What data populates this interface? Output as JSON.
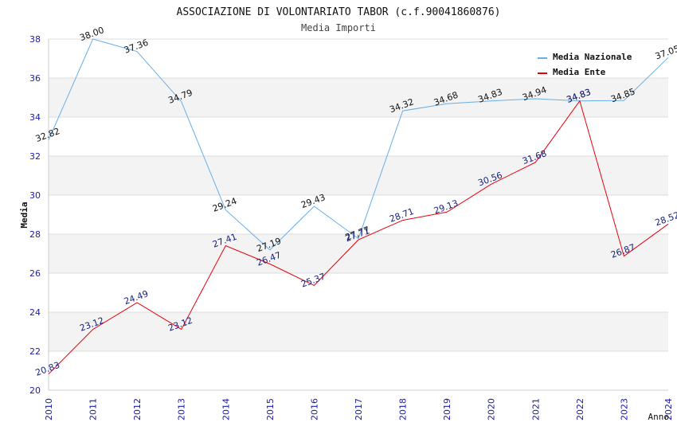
{
  "chart_data": {
    "type": "line",
    "title": "ASSOCIAZIONE DI VOLONTARIATO TABOR (c.f.90041860876)",
    "subtitle": "Media Importi",
    "xlabel": "Anno",
    "ylabel": "Media",
    "ylim": [
      20,
      38
    ],
    "yticks": [
      "20",
      "22",
      "24",
      "26",
      "28",
      "30",
      "32",
      "34",
      "36",
      "38"
    ],
    "x": [
      "2010",
      "2011",
      "2012",
      "2013",
      "2014",
      "2015",
      "2016",
      "2017",
      "2018",
      "2019",
      "2020",
      "2021",
      "2022",
      "2023",
      "2024"
    ],
    "grid": true,
    "legend_position": "top-right",
    "series": [
      {
        "name": "Media Nazionale",
        "color": "#6aaee6",
        "label_color": "#111111",
        "values": [
          32.82,
          38.0,
          37.36,
          34.79,
          29.24,
          27.19,
          29.43,
          27.77,
          34.32,
          34.68,
          34.83,
          34.94,
          34.83,
          34.85,
          37.05
        ],
        "labels": [
          "32.82",
          "38.00",
          "37.36",
          "34.79",
          "29.24",
          "27.19",
          "29.43",
          "27.77",
          "34.32",
          "34.68",
          "34.83",
          "34.94",
          "34.83",
          "34.85",
          "37.05"
        ]
      },
      {
        "name": "Media Ente",
        "color": "#e8000b",
        "label_color": "#1a237e",
        "values": [
          20.83,
          23.12,
          24.49,
          23.12,
          27.41,
          26.47,
          25.37,
          27.71,
          28.71,
          29.13,
          30.56,
          31.68,
          34.83,
          26.87,
          28.52
        ],
        "labels": [
          "20.83",
          "23.12",
          "24.49",
          "23.12",
          "27.41",
          "26.47",
          "25.37",
          "27.71",
          "28.71",
          "29.13",
          "30.56",
          "31.68",
          "34.83",
          "26.87",
          "28.52"
        ]
      }
    ]
  }
}
